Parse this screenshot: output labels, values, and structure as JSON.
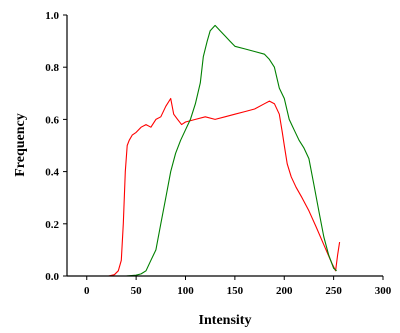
{
  "chart_data": {
    "type": "line",
    "xlabel": "Intensity",
    "ylabel": "Frequency",
    "xlim": [
      -20,
      300
    ],
    "ylim": [
      0,
      1.0
    ],
    "xticks": [
      0,
      50,
      100,
      150,
      200,
      250,
      300
    ],
    "yticks": [
      0.0,
      0.2,
      0.4,
      0.6,
      0.8,
      1.0
    ],
    "xtick_labels": [
      "0",
      "50",
      "100",
      "150",
      "200",
      "250",
      "300"
    ],
    "ytick_labels": [
      "0.0",
      "0.2",
      "0.4",
      "0.6",
      "0.8",
      "1.0"
    ],
    "grid": false,
    "series": [
      {
        "color": "#ff0000",
        "x": [
          22,
          28,
          32,
          35,
          37,
          39,
          41,
          43,
          46,
          50,
          55,
          60,
          65,
          70,
          75,
          80,
          85,
          88,
          92,
          96,
          100,
          110,
          120,
          130,
          140,
          150,
          160,
          170,
          180,
          185,
          190,
          195,
          198,
          200,
          203,
          207,
          212,
          218,
          225,
          232,
          240,
          248,
          252,
          254,
          256
        ],
        "y": [
          0.0,
          0.005,
          0.02,
          0.06,
          0.2,
          0.4,
          0.5,
          0.52,
          0.54,
          0.55,
          0.57,
          0.58,
          0.57,
          0.6,
          0.61,
          0.65,
          0.68,
          0.62,
          0.6,
          0.58,
          0.59,
          0.6,
          0.61,
          0.6,
          0.61,
          0.62,
          0.63,
          0.64,
          0.66,
          0.67,
          0.66,
          0.62,
          0.55,
          0.5,
          0.43,
          0.38,
          0.34,
          0.3,
          0.25,
          0.19,
          0.12,
          0.05,
          0.02,
          0.08,
          0.13
        ]
      },
      {
        "color": "#008000",
        "x": [
          30,
          40,
          50,
          55,
          60,
          65,
          70,
          75,
          80,
          85,
          90,
          95,
          100,
          105,
          110,
          115,
          118,
          122,
          125,
          130,
          135,
          140,
          145,
          150,
          160,
          170,
          180,
          185,
          190,
          195,
          200,
          205,
          210,
          215,
          220,
          225,
          230,
          235,
          240,
          245,
          250,
          253
        ],
        "y": [
          0.0,
          0.0,
          0.003,
          0.008,
          0.02,
          0.06,
          0.1,
          0.2,
          0.3,
          0.4,
          0.47,
          0.52,
          0.56,
          0.6,
          0.66,
          0.74,
          0.84,
          0.9,
          0.94,
          0.96,
          0.94,
          0.92,
          0.9,
          0.88,
          0.87,
          0.86,
          0.85,
          0.83,
          0.8,
          0.72,
          0.68,
          0.6,
          0.56,
          0.52,
          0.49,
          0.45,
          0.35,
          0.25,
          0.15,
          0.08,
          0.03,
          0.02
        ]
      }
    ]
  }
}
